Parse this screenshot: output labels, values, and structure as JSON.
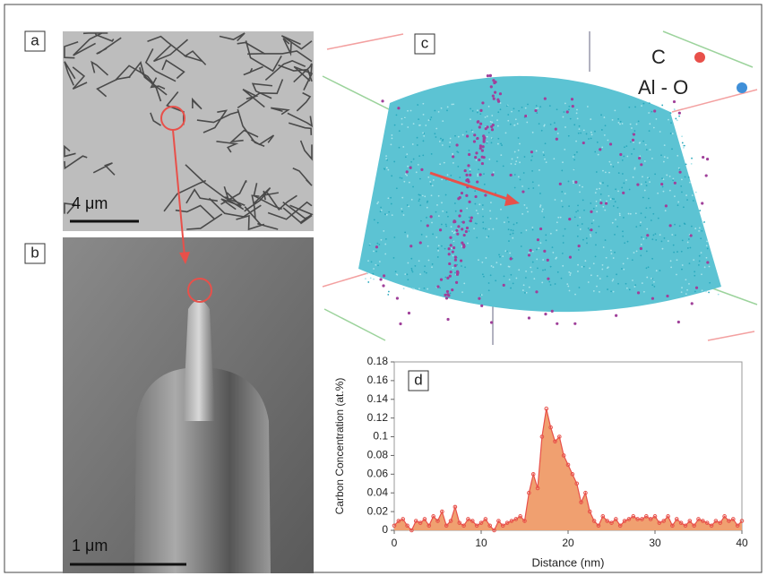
{
  "panels": {
    "a": {
      "label": "a",
      "scale_bar": "4 μm"
    },
    "b": {
      "label": "b",
      "scale_bar": "1 μm"
    },
    "c": {
      "label": "c",
      "legend": [
        "C",
        "Al - O"
      ]
    },
    "d": {
      "label": "d"
    }
  },
  "chart_data": {
    "type": "area",
    "xlabel": "Distance (nm)",
    "ylabel": "Carbon Concentration (at.%)",
    "x": [
      0,
      0.5,
      1,
      1.5,
      2,
      2.5,
      3,
      3.5,
      4,
      4.5,
      5,
      5.5,
      6,
      6.5,
      7,
      7.5,
      8,
      8.5,
      9,
      9.5,
      10,
      10.5,
      11,
      11.5,
      12,
      12.5,
      13,
      13.5,
      14,
      14.5,
      15,
      15.5,
      16,
      16.5,
      17,
      17.5,
      18,
      18.5,
      19,
      19.5,
      20,
      20.5,
      21,
      21.5,
      22,
      22.5,
      23,
      23.5,
      24,
      24.5,
      25,
      25.5,
      26,
      26.5,
      27,
      27.5,
      28,
      28.5,
      29,
      29.5,
      30,
      30.5,
      31,
      31.5,
      32,
      32.5,
      33,
      33.5,
      34,
      34.5,
      35,
      35.5,
      36,
      36.5,
      37,
      37.5,
      38,
      38.5,
      39,
      39.5,
      40
    ],
    "values": [
      0.005,
      0.01,
      0.012,
      0.005,
      0,
      0.01,
      0.008,
      0.012,
      0.005,
      0.015,
      0.01,
      0.02,
      0.005,
      0.01,
      0.025,
      0.008,
      0.005,
      0.012,
      0.01,
      0.005,
      0.008,
      0.012,
      0.005,
      0,
      0.01,
      0.005,
      0.008,
      0.01,
      0.012,
      0.015,
      0.01,
      0.04,
      0.06,
      0.045,
      0.1,
      0.13,
      0.11,
      0.095,
      0.1,
      0.08,
      0.07,
      0.06,
      0.05,
      0.03,
      0.04,
      0.02,
      0.01,
      0.005,
      0.015,
      0.01,
      0.008,
      0.012,
      0.005,
      0.01,
      0.012,
      0.015,
      0.012,
      0.012,
      0.015,
      0.012,
      0.015,
      0.008,
      0.01,
      0.015,
      0.005,
      0.012,
      0.008,
      0.005,
      0.01,
      0.005,
      0.012,
      0.01,
      0.008,
      0.005,
      0.01,
      0.008,
      0.015,
      0.01,
      0.012,
      0.005,
      0.01
    ],
    "color": "#f0a070",
    "line_color": "#e8504a",
    "xlim": [
      0,
      40
    ],
    "ylim": [
      0,
      0.18
    ],
    "xticks": [
      0,
      10,
      20,
      30,
      40
    ],
    "yticks": [
      0,
      0.02,
      0.04,
      0.06,
      0.08,
      0.1,
      0.12,
      0.14,
      0.16,
      0.18
    ]
  }
}
